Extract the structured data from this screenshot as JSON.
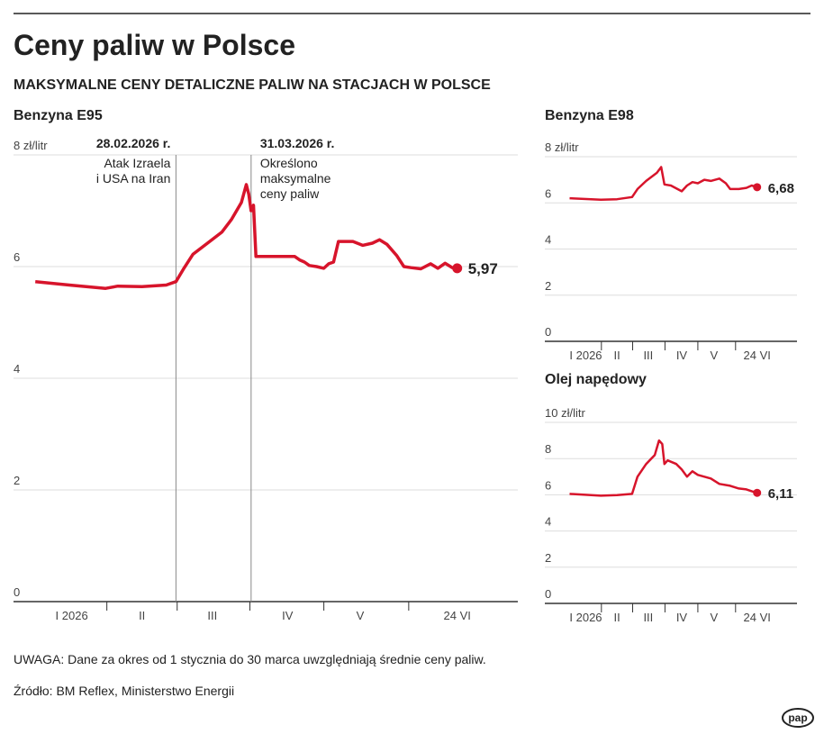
{
  "title": "Ceny paliw w Polsce",
  "subtitle": "MAKSYMALNE CENY DETALICZNE PALIW NA STACJACH W POLSCE",
  "note": "UWAGA: Dane za okres od 1 stycznia do 30 marca uwzględniają średnie ceny paliw.",
  "source": "Źródło: BM Reflex, Ministerstwo Energii",
  "logo": "pap",
  "chart_data": [
    {
      "type": "line",
      "title": "Benzyna E95",
      "color": "#d7142b",
      "grid": true,
      "x": [
        1,
        15,
        30,
        35,
        45,
        55,
        59,
        62,
        66,
        72,
        78,
        82,
        86,
        88,
        89,
        90,
        91,
        92,
        100,
        108,
        110,
        112,
        114,
        117,
        120,
        122,
        124,
        126,
        132,
        136,
        140,
        143,
        146,
        150,
        153,
        156,
        160,
        164,
        167,
        170,
        173,
        175
      ],
      "values": [
        5.73,
        5.67,
        5.61,
        5.65,
        5.64,
        5.67,
        5.73,
        5.95,
        6.22,
        6.42,
        6.62,
        6.85,
        7.15,
        7.47,
        7.3,
        7.0,
        7.1,
        6.18,
        6.18,
        6.18,
        6.12,
        6.08,
        6.02,
        6.0,
        5.97,
        6.05,
        6.08,
        6.45,
        6.45,
        6.38,
        6.42,
        6.48,
        6.4,
        6.2,
        6.0,
        5.98,
        5.96,
        6.05,
        5.97,
        6.06,
        5.98,
        5.97
      ],
      "value_labels": [
        null,
        null,
        null,
        null,
        null,
        null,
        null,
        null,
        null,
        null,
        null,
        null,
        null,
        null,
        null,
        null,
        null,
        null,
        null,
        null,
        null,
        null,
        null,
        null,
        null,
        null,
        null,
        null,
        null,
        null,
        null,
        null,
        null,
        null,
        null,
        null,
        null,
        null,
        null,
        null,
        null,
        "5,97"
      ],
      "xlim": [
        -8,
        200
      ],
      "xticks": [
        {
          "value": 16,
          "label": "I 2026"
        },
        {
          "value": 45,
          "label": "II"
        },
        {
          "value": 74,
          "label": "III"
        },
        {
          "value": 105,
          "label": "IV"
        },
        {
          "value": 135,
          "label": "V"
        },
        {
          "value": 175,
          "label": "24 VI"
        }
      ],
      "ylim": [
        0,
        8
      ],
      "yticks": [
        0,
        2,
        4,
        6,
        {
          "value": 8,
          "label": "8 zł/litr"
        }
      ],
      "annotations": [
        {
          "x": 59,
          "date": "28.02.2026 r.",
          "lines": [
            "Atak Izraela",
            "i USA na Iran"
          ],
          "align": "right"
        },
        {
          "x": 90,
          "date": "31.03.2026 r.",
          "lines": [
            "Określono",
            "maksymalne",
            "ceny paliw"
          ],
          "align": "left"
        }
      ]
    },
    {
      "type": "line",
      "title": "Benzyna E98",
      "color": "#d7142b",
      "grid": true,
      "x": [
        1,
        30,
        45,
        59,
        64,
        72,
        82,
        86,
        89,
        95,
        105,
        110,
        115,
        120,
        126,
        132,
        140,
        146,
        150,
        158,
        165,
        170,
        175
      ],
      "values": [
        6.2,
        6.14,
        6.16,
        6.25,
        6.6,
        6.95,
        7.3,
        7.55,
        6.8,
        6.75,
        6.5,
        6.75,
        6.9,
        6.85,
        7.0,
        6.95,
        7.05,
        6.85,
        6.6,
        6.6,
        6.65,
        6.75,
        6.68
      ],
      "value_labels": [
        null,
        null,
        null,
        null,
        null,
        null,
        null,
        null,
        null,
        null,
        null,
        null,
        null,
        null,
        null,
        null,
        null,
        null,
        null,
        null,
        null,
        null,
        "6,68"
      ],
      "xlim": [
        -22,
        212
      ],
      "xticks": [
        {
          "value": 16,
          "label": "I 2026"
        },
        {
          "value": 45,
          "label": "II"
        },
        {
          "value": 74,
          "label": "III"
        },
        {
          "value": 105,
          "label": "IV"
        },
        {
          "value": 135,
          "label": "V"
        },
        {
          "value": 175,
          "label": "24 VI"
        }
      ],
      "ylim": [
        0,
        8
      ],
      "yticks": [
        0,
        2,
        4,
        6,
        {
          "value": 8,
          "label": "8 zł/litr"
        }
      ]
    },
    {
      "type": "line",
      "title": "Olej napędowy",
      "color": "#d7142b",
      "grid": true,
      "x": [
        1,
        30,
        45,
        59,
        64,
        72,
        80,
        84,
        87,
        89,
        92,
        100,
        105,
        110,
        115,
        120,
        126,
        132,
        140,
        150,
        158,
        165,
        170,
        175
      ],
      "values": [
        6.05,
        5.95,
        5.98,
        6.05,
        7.0,
        7.7,
        8.2,
        9.0,
        8.8,
        7.7,
        7.9,
        7.7,
        7.4,
        7.0,
        7.3,
        7.1,
        7.0,
        6.9,
        6.6,
        6.5,
        6.35,
        6.3,
        6.2,
        6.11
      ],
      "value_labels": [
        null,
        null,
        null,
        null,
        null,
        null,
        null,
        null,
        null,
        null,
        null,
        null,
        null,
        null,
        null,
        null,
        null,
        null,
        null,
        null,
        null,
        null,
        null,
        "6,11"
      ],
      "xlim": [
        -22,
        212
      ],
      "xticks": [
        {
          "value": 16,
          "label": "I 2026"
        },
        {
          "value": 45,
          "label": "II"
        },
        {
          "value": 74,
          "label": "III"
        },
        {
          "value": 105,
          "label": "IV"
        },
        {
          "value": 135,
          "label": "V"
        },
        {
          "value": 175,
          "label": "24 VI"
        }
      ],
      "ylim": [
        0,
        10
      ],
      "yticks": [
        0,
        2,
        4,
        6,
        8,
        {
          "value": 10,
          "label": "10 zł/litr"
        }
      ]
    }
  ]
}
